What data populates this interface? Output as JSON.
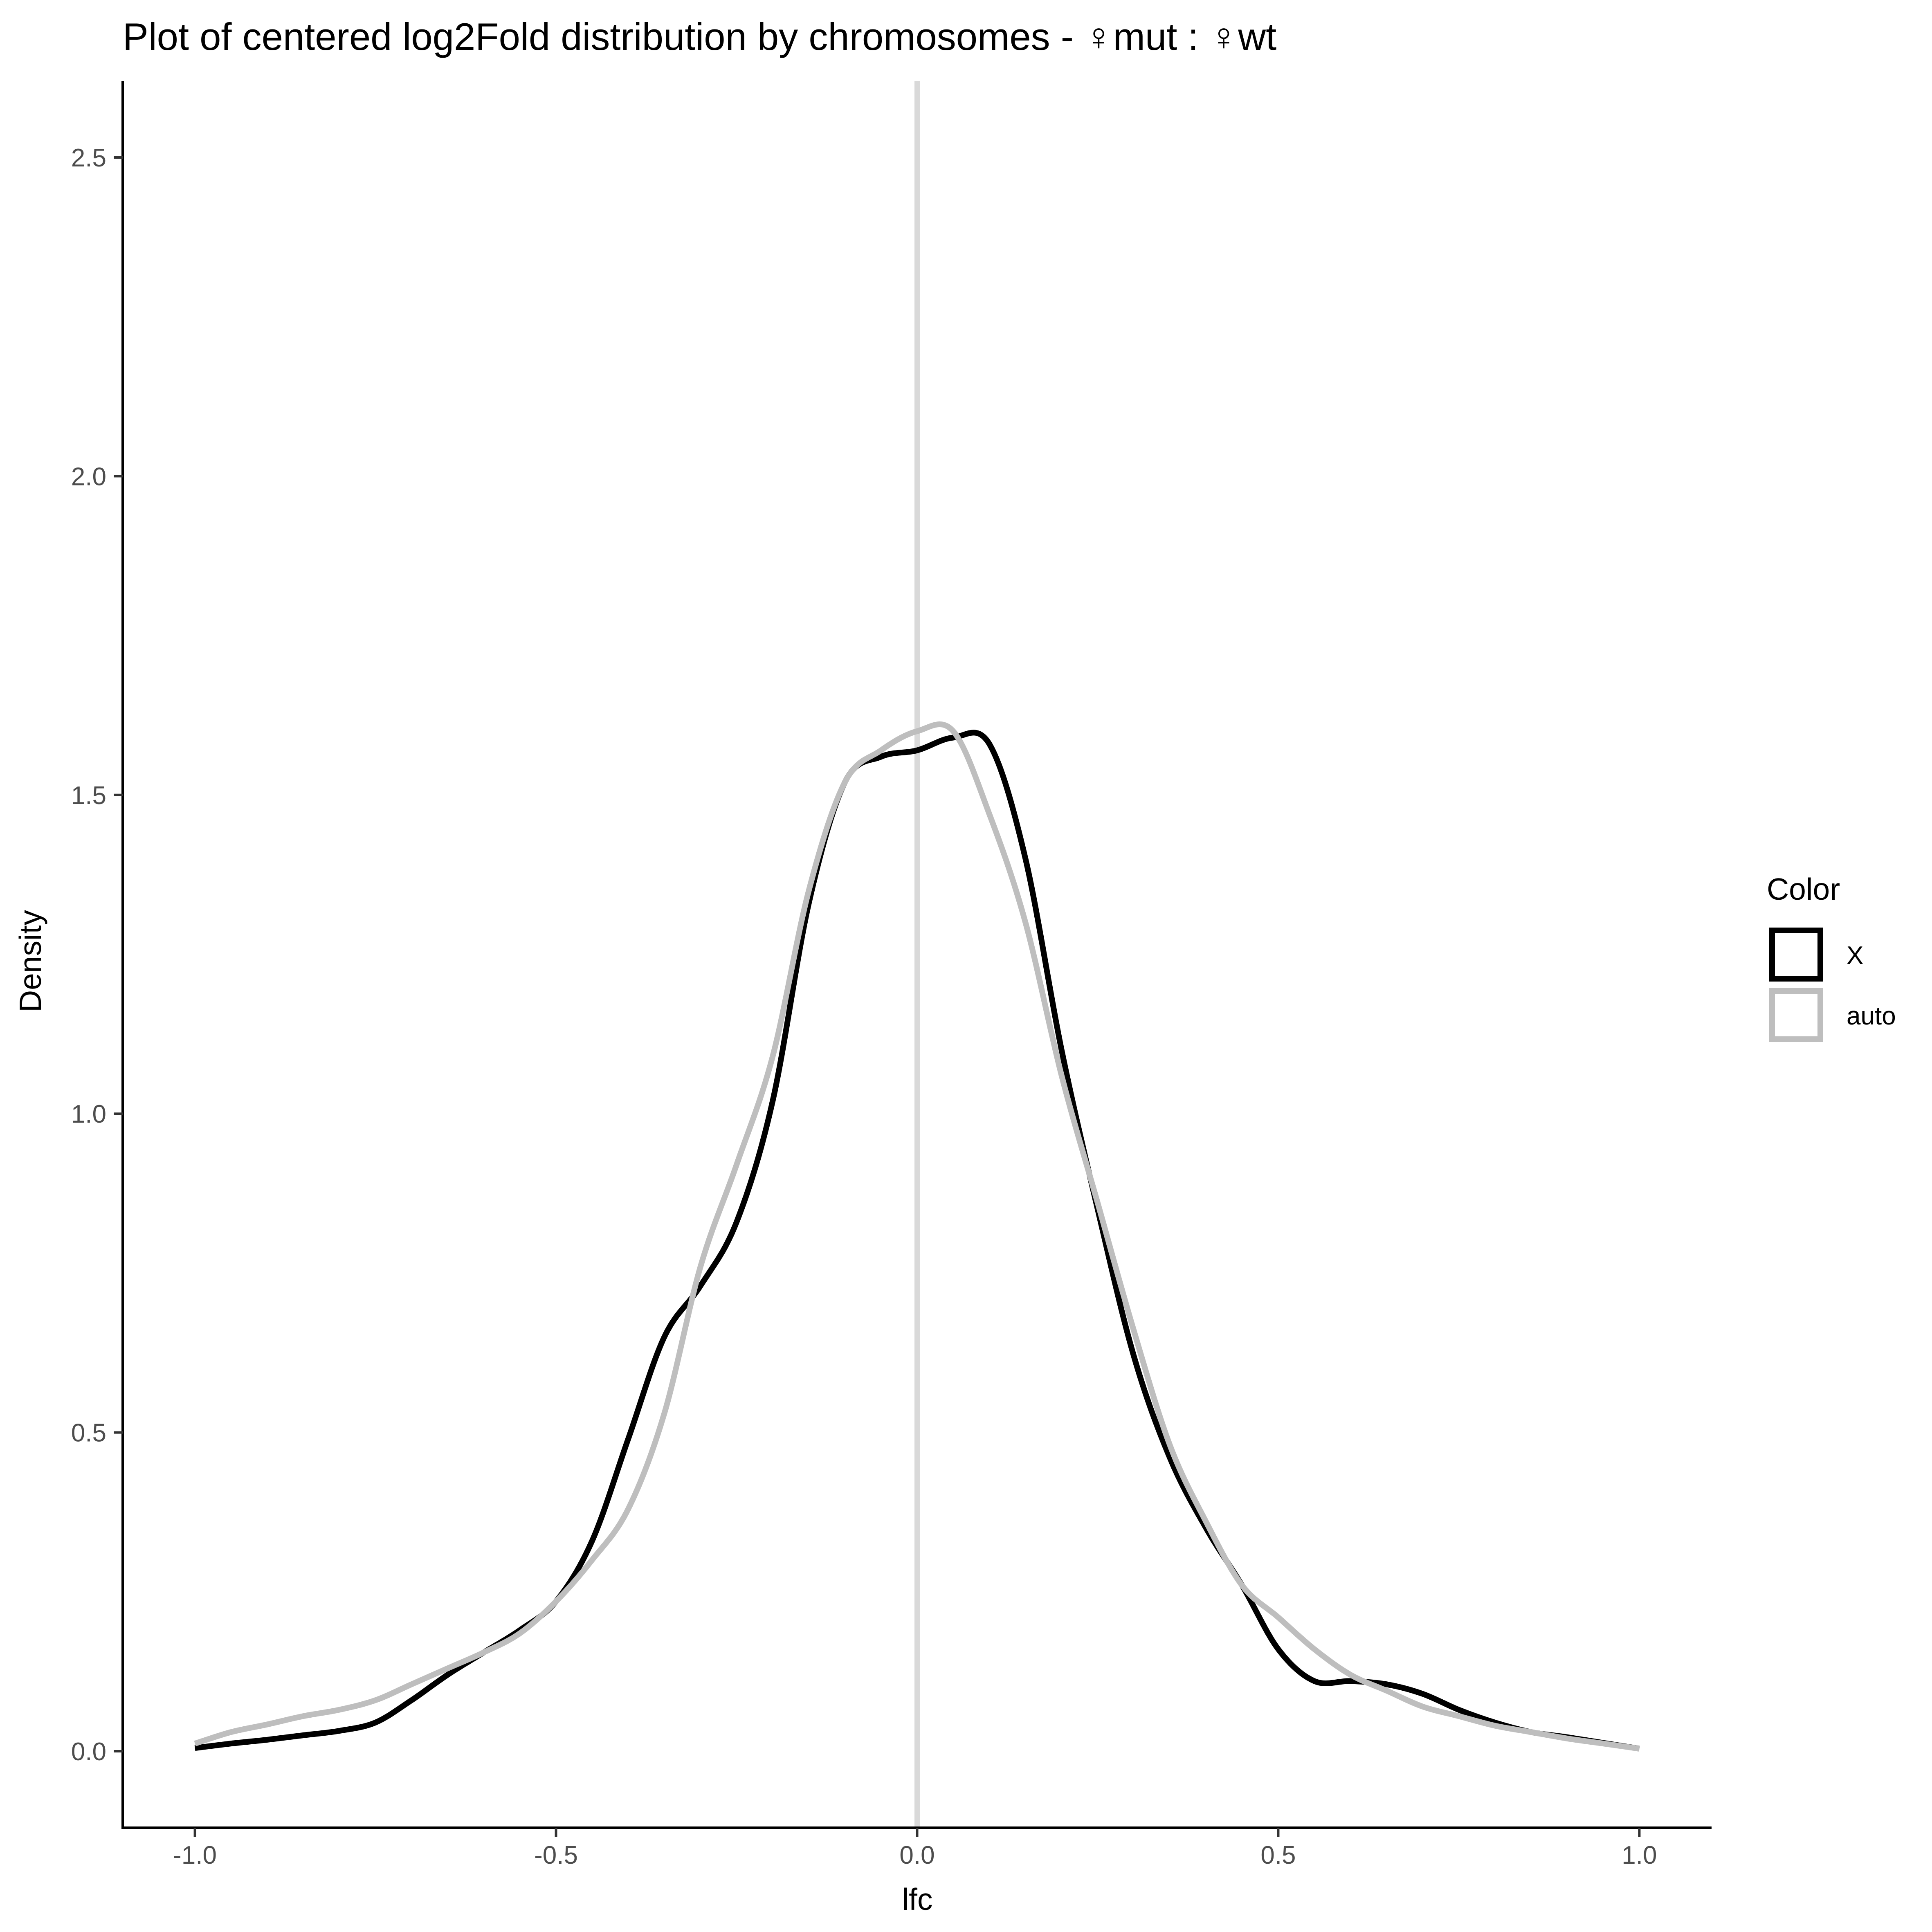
{
  "chart_data": {
    "type": "line",
    "title": "Plot of centered log2Fold distribution by chromosomes - ♀mut : ♀wt",
    "xlabel": "lfc",
    "ylabel": "Density",
    "xlim": [
      -1.1,
      1.1
    ],
    "ylim": [
      -0.12,
      2.62
    ],
    "xticks": [
      -1.0,
      -0.5,
      0.0,
      0.5,
      1.0
    ],
    "xtick_labels": [
      "-1.0",
      "-0.5",
      "0.0",
      "0.5",
      "1.0"
    ],
    "yticks": [
      0.0,
      0.5,
      1.0,
      1.5,
      2.0,
      2.5
    ],
    "ytick_labels": [
      "0.0",
      "0.5",
      "1.0",
      "1.5",
      "2.0",
      "2.5"
    ],
    "grid": false,
    "reference_line": {
      "x": 0.0,
      "color": "#d9d9d9"
    },
    "legend": {
      "title": "Color",
      "placement": "right"
    },
    "series": [
      {
        "name": "X",
        "color": "#000000",
        "x": [
          -1.0,
          -0.95,
          -0.9,
          -0.85,
          -0.8,
          -0.75,
          -0.7,
          -0.65,
          -0.6,
          -0.55,
          -0.5,
          -0.45,
          -0.4,
          -0.35,
          -0.3,
          -0.25,
          -0.2,
          -0.15,
          -0.1,
          -0.05,
          0.0,
          0.05,
          0.1,
          0.15,
          0.2,
          0.25,
          0.3,
          0.35,
          0.4,
          0.45,
          0.5,
          0.55,
          0.6,
          0.65,
          0.7,
          0.75,
          0.8,
          0.85,
          0.9,
          0.95,
          1.0
        ],
        "y": [
          0.005,
          0.012,
          0.018,
          0.025,
          0.032,
          0.045,
          0.08,
          0.12,
          0.155,
          0.19,
          0.235,
          0.33,
          0.49,
          0.65,
          0.73,
          0.83,
          1.02,
          1.33,
          1.52,
          1.56,
          1.57,
          1.59,
          1.58,
          1.4,
          1.1,
          0.85,
          0.62,
          0.46,
          0.35,
          0.26,
          0.16,
          0.11,
          0.11,
          0.105,
          0.09,
          0.065,
          0.045,
          0.03,
          0.022,
          0.013,
          0.004
        ]
      },
      {
        "name": "auto",
        "color": "#bebebe",
        "x": [
          -1.0,
          -0.95,
          -0.9,
          -0.85,
          -0.8,
          -0.75,
          -0.7,
          -0.65,
          -0.6,
          -0.55,
          -0.5,
          -0.45,
          -0.4,
          -0.35,
          -0.3,
          -0.25,
          -0.2,
          -0.15,
          -0.1,
          -0.05,
          0.0,
          0.05,
          0.1,
          0.15,
          0.2,
          0.25,
          0.3,
          0.35,
          0.4,
          0.45,
          0.5,
          0.55,
          0.6,
          0.65,
          0.7,
          0.75,
          0.8,
          0.85,
          0.9,
          0.95,
          1.0
        ],
        "y": [
          0.012,
          0.03,
          0.042,
          0.055,
          0.065,
          0.08,
          0.105,
          0.13,
          0.155,
          0.185,
          0.235,
          0.3,
          0.38,
          0.53,
          0.76,
          0.92,
          1.09,
          1.35,
          1.52,
          1.57,
          1.6,
          1.6,
          1.47,
          1.3,
          1.06,
          0.86,
          0.66,
          0.48,
          0.36,
          0.26,
          0.21,
          0.16,
          0.12,
          0.095,
          0.07,
          0.055,
          0.04,
          0.03,
          0.02,
          0.012,
          0.004
        ]
      }
    ]
  }
}
